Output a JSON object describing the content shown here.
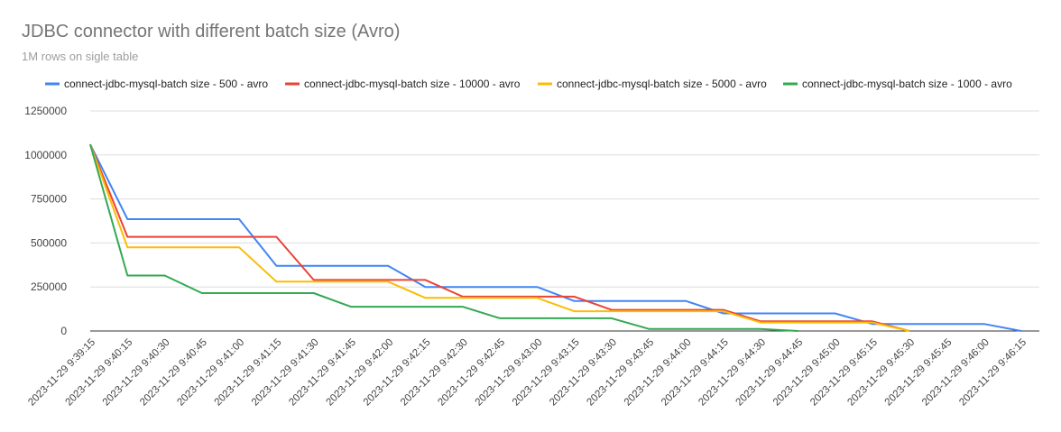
{
  "chart_data": {
    "type": "line",
    "title": "JDBC connector with different batch size (Avro)",
    "subtitle": "1M rows on sigle table",
    "xlabel": "",
    "ylabel": "",
    "ylim": [
      0,
      1250000
    ],
    "y_ticks": [
      "0",
      "250000",
      "500000",
      "750000",
      "1000000",
      "1250000"
    ],
    "grid": true,
    "legend_position": "top",
    "x": [
      "2023-11-29 9:39:15",
      "2023-11-29 9:40:15",
      "2023-11-29 9:40:30",
      "2023-11-29 9:40:45",
      "2023-11-29 9:41:00",
      "2023-11-29 9:41:15",
      "2023-11-29 9:41:30",
      "2023-11-29 9:41:45",
      "2023-11-29 9:42:00",
      "2023-11-29 9:42:15",
      "2023-11-29 9:42:30",
      "2023-11-29 9:42:45",
      "2023-11-29 9:43:00",
      "2023-11-29 9:43:15",
      "2023-11-29 9:43:30",
      "2023-11-29 9:43:45",
      "2023-11-29 9:44:00",
      "2023-11-29 9:44:15",
      "2023-11-29 9:44:30",
      "2023-11-29 9:44:45",
      "2023-11-29 9:45:00",
      "2023-11-29 9:45:15",
      "2023-11-29 9:45:30",
      "2023-11-29 9:45:45",
      "2023-11-29 9:46:00",
      "2023-11-29 9:46:15"
    ],
    "series": [
      {
        "name": "connect-jdbc-mysql-batch size - 500 - avro",
        "color": "#4285f4",
        "values": [
          1060000,
          635000,
          635000,
          635000,
          635000,
          370000,
          370000,
          370000,
          370000,
          250000,
          250000,
          250000,
          250000,
          170000,
          170000,
          170000,
          170000,
          100000,
          100000,
          100000,
          100000,
          40000,
          40000,
          40000,
          40000,
          0
        ]
      },
      {
        "name": "connect-jdbc-mysql-batch size - 10000 - avro",
        "color": "#ea4335",
        "values": [
          1060000,
          535000,
          535000,
          535000,
          535000,
          535000,
          290000,
          290000,
          290000,
          290000,
          195000,
          195000,
          195000,
          195000,
          120000,
          120000,
          120000,
          120000,
          55000,
          55000,
          55000,
          55000,
          0,
          null,
          null,
          null
        ]
      },
      {
        "name": "connect-jdbc-mysql-batch size - 5000 - avro",
        "color": "#fbbc04",
        "values": [
          1060000,
          475000,
          475000,
          475000,
          475000,
          280000,
          280000,
          280000,
          280000,
          188000,
          188000,
          188000,
          188000,
          112000,
          112000,
          112000,
          112000,
          112000,
          48000,
          48000,
          48000,
          48000,
          0,
          null,
          null,
          null
        ]
      },
      {
        "name": "connect-jdbc-mysql-batch size - 1000 - avro",
        "color": "#34a853",
        "values": [
          1060000,
          315000,
          315000,
          215000,
          215000,
          215000,
          215000,
          138000,
          138000,
          138000,
          138000,
          72000,
          72000,
          72000,
          72000,
          12000,
          12000,
          12000,
          12000,
          0,
          null,
          null,
          null,
          null,
          null,
          null
        ]
      }
    ]
  }
}
